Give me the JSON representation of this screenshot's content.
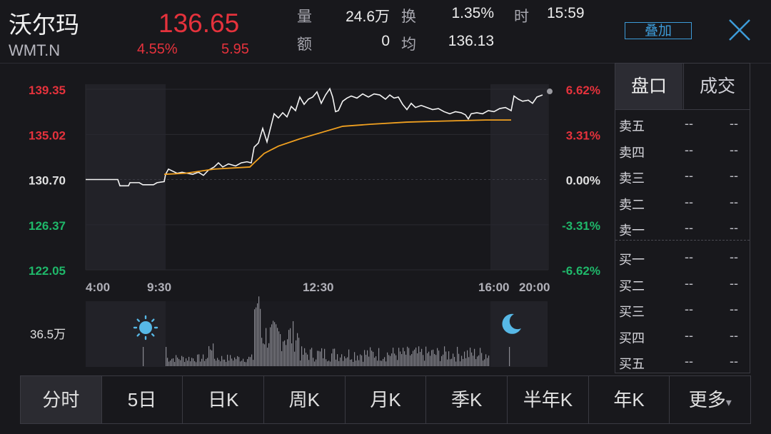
{
  "header": {
    "name": "沃尔玛",
    "code": "WMT.N",
    "price": "136.65",
    "change_pct": "4.55%",
    "change_amt": "5.95",
    "volume_label": "量",
    "volume_value": "24.6万",
    "turnover_rate_label": "换",
    "turnover_rate_value": "1.35%",
    "time_label": "时",
    "time_value": "15:59",
    "amount_label": "额",
    "amount_value": "0",
    "avg_label": "均",
    "avg_value": "136.13",
    "overlay_button": "叠加"
  },
  "chart_data": {
    "type": "line",
    "y_left_ticks": [
      "139.35",
      "135.02",
      "130.70",
      "126.37",
      "122.05"
    ],
    "y_right_ticks": [
      "6.62%",
      "3.31%",
      "0.00%",
      "-3.31%",
      "-6.62%"
    ],
    "x_ticks": [
      "4:00",
      "9:30",
      "12:30",
      "16:00",
      "20:00"
    ],
    "ylim": [
      122.05,
      139.35
    ],
    "prev_close": 130.7,
    "volume_label": "36.5万",
    "series": [
      {
        "values": [
          [
            0,
            130.7
          ],
          [
            20,
            130.7
          ],
          [
            45,
            130.7
          ],
          [
            48,
            130.1
          ],
          [
            60,
            130.1
          ],
          [
            62,
            130.4
          ],
          [
            75,
            130.4
          ],
          [
            80,
            130.2
          ],
          [
            95,
            130.2
          ],
          [
            100,
            130.4
          ],
          [
            110,
            130.5
          ],
          [
            112,
            131.2
          ],
          [
            116,
            131.7
          ],
          [
            122,
            131.5
          ],
          [
            128,
            131.3
          ],
          [
            135,
            131.4
          ],
          [
            142,
            131.3
          ],
          [
            150,
            131.2
          ],
          [
            158,
            131.4
          ],
          [
            165,
            131.1
          ],
          [
            172,
            131.6
          ],
          [
            180,
            131.9
          ],
          [
            186,
            132.3
          ],
          [
            192,
            131.9
          ],
          [
            200,
            132.2
          ],
          [
            210,
            132.0
          ],
          [
            218,
            132.3
          ],
          [
            226,
            132.4
          ],
          [
            232,
            132.3
          ],
          [
            236,
            133.8
          ],
          [
            242,
            134.2
          ],
          [
            248,
            135.6
          ],
          [
            254,
            134.3
          ],
          [
            258,
            135.4
          ],
          [
            264,
            137.0
          ],
          [
            270,
            136.6
          ],
          [
            276,
            137.1
          ],
          [
            282,
            136.7
          ],
          [
            288,
            137.7
          ],
          [
            294,
            137.3
          ],
          [
            300,
            138.6
          ],
          [
            306,
            137.9
          ],
          [
            312,
            138.4
          ],
          [
            318,
            138.6
          ],
          [
            324,
            139.1
          ],
          [
            330,
            138.0
          ],
          [
            336,
            138.8
          ],
          [
            342,
            139.4
          ],
          [
            346,
            138.6
          ],
          [
            350,
            137.2
          ],
          [
            354,
            137.3
          ],
          [
            360,
            138.2
          ],
          [
            366,
            138.5
          ],
          [
            372,
            138.7
          ],
          [
            380,
            138.5
          ],
          [
            388,
            138.9
          ],
          [
            396,
            138.6
          ],
          [
            404,
            138.9
          ],
          [
            412,
            138.8
          ],
          [
            420,
            138.4
          ],
          [
            426,
            138.8
          ],
          [
            432,
            138.5
          ],
          [
            438,
            138.6
          ],
          [
            444,
            137.9
          ],
          [
            450,
            137.4
          ],
          [
            456,
            138.0
          ],
          [
            462,
            137.6
          ],
          [
            470,
            137.8
          ],
          [
            478,
            137.6
          ],
          [
            486,
            137.4
          ],
          [
            494,
            137.5
          ],
          [
            502,
            137.2
          ],
          [
            510,
            137.0
          ],
          [
            518,
            137.2
          ],
          [
            526,
            137.1
          ],
          [
            532,
            136.9
          ],
          [
            536,
            136.5
          ],
          [
            540,
            137.0
          ],
          [
            548,
            137.1
          ],
          [
            556,
            137.0
          ],
          [
            564,
            137.3
          ],
          [
            572,
            137.2
          ],
          [
            580,
            137.5
          ],
          [
            588,
            137.6
          ],
          [
            596,
            137.3
          ],
          [
            600,
            138.7
          ],
          [
            606,
            138.4
          ],
          [
            612,
            138.2
          ],
          [
            620,
            138.3
          ],
          [
            626,
            138.0
          ],
          [
            632,
            138.6
          ],
          [
            640,
            138.8
          ]
        ]
      },
      {
        "values": [
          [
            110,
            131.2
          ],
          [
            140,
            131.3
          ],
          [
            180,
            131.7
          ],
          [
            230,
            131.9
          ],
          [
            236,
            132.3
          ],
          [
            250,
            133.2
          ],
          [
            270,
            133.9
          ],
          [
            300,
            134.6
          ],
          [
            330,
            135.2
          ],
          [
            360,
            135.8
          ],
          [
            400,
            136.0
          ],
          [
            450,
            136.2
          ],
          [
            500,
            136.3
          ],
          [
            560,
            136.4
          ],
          [
            596,
            136.4
          ]
        ]
      }
    ]
  },
  "panel": {
    "tab_orderbook": "盘口",
    "tab_trades": "成交",
    "asks": [
      {
        "label": "卖五",
        "price": "--",
        "qty": "--"
      },
      {
        "label": "卖四",
        "price": "--",
        "qty": "--"
      },
      {
        "label": "卖三",
        "price": "--",
        "qty": "--"
      },
      {
        "label": "卖二",
        "price": "--",
        "qty": "--"
      },
      {
        "label": "卖一",
        "price": "--",
        "qty": "--"
      }
    ],
    "bids": [
      {
        "label": "买一",
        "price": "--",
        "qty": "--"
      },
      {
        "label": "买二",
        "price": "--",
        "qty": "--"
      },
      {
        "label": "买三",
        "price": "--",
        "qty": "--"
      },
      {
        "label": "买四",
        "price": "--",
        "qty": "--"
      },
      {
        "label": "买五",
        "price": "--",
        "qty": "--"
      }
    ]
  },
  "bottom_tabs": [
    "分时",
    "5日",
    "日K",
    "周K",
    "月K",
    "季K",
    "半年K",
    "年K",
    "更多"
  ],
  "colors": {
    "up": "#e5323c",
    "down": "#1fb86a",
    "avg": "#f0a020",
    "accent": "#3d9bd8"
  }
}
